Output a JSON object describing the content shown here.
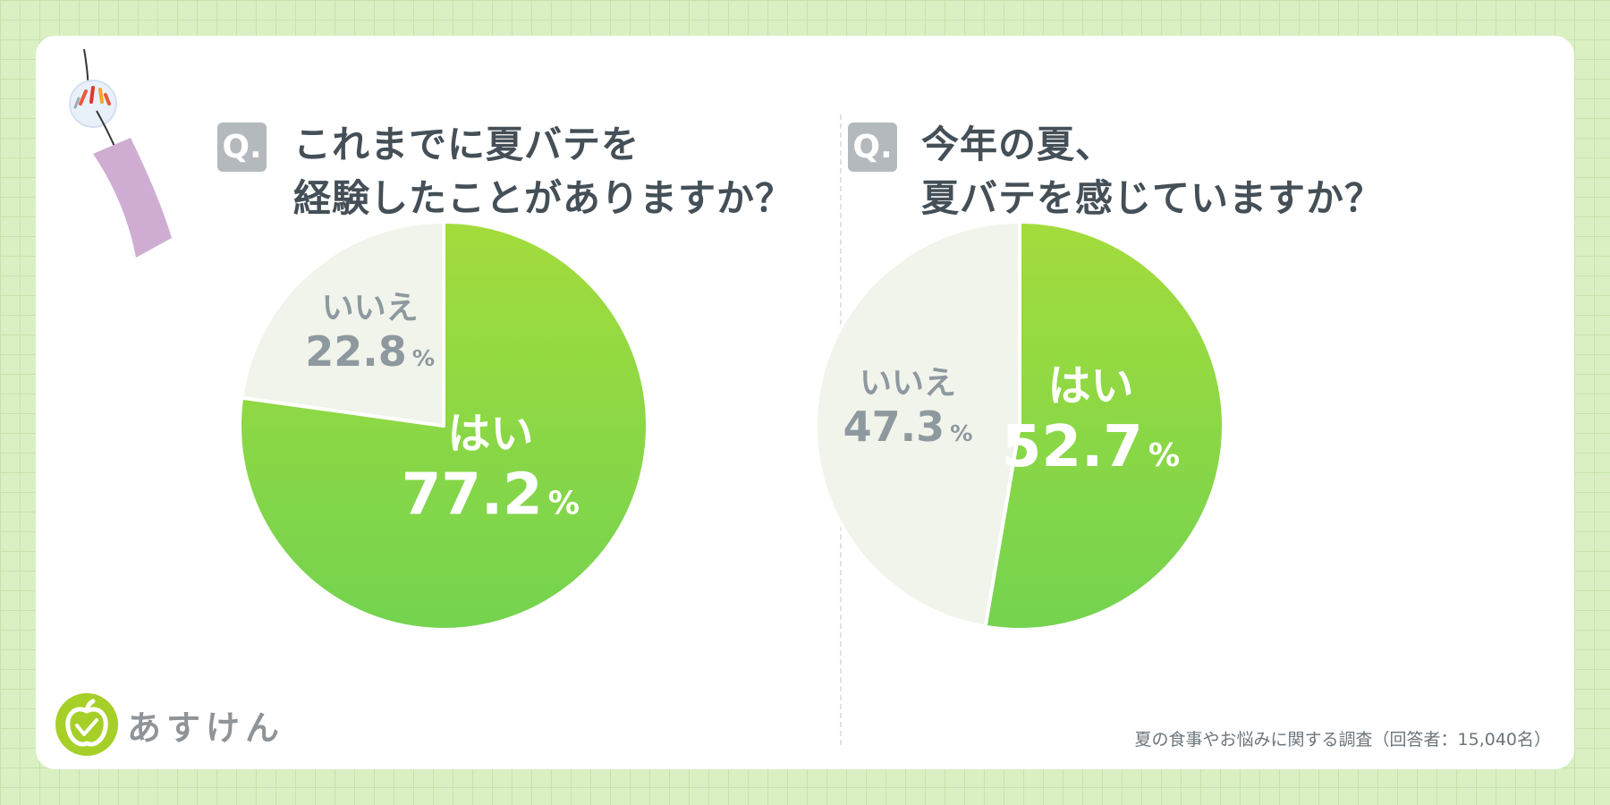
{
  "brand": {
    "name": "あすけん",
    "icon": "apple-logo-icon"
  },
  "footnote": "夏の食事やお悩みに関する調査（回答者：15,040名）",
  "decoration": {
    "icon": "wind-chime-icon"
  },
  "colors": {
    "yes_top": "#a3dc3c",
    "yes_bottom": "#74d34f",
    "no_fill": "#f1f4eb",
    "no_text": "#8e999f",
    "title_text": "#444f57",
    "badge": "#b3b9bd"
  },
  "chart_data": [
    {
      "type": "pie",
      "question_badge": "Q.",
      "title_lines": [
        "これまでに夏バテを",
        "経験したことがありますか？"
      ],
      "slices": [
        {
          "label": "はい",
          "value": 77.2,
          "unit": "%"
        },
        {
          "label": "いいえ",
          "value": 22.8,
          "unit": "%"
        }
      ],
      "start_angle": 0,
      "direction": "clockwise"
    },
    {
      "type": "pie",
      "question_badge": "Q.",
      "title_lines": [
        "今年の夏、",
        "夏バテを感じていますか？"
      ],
      "slices": [
        {
          "label": "はい",
          "value": 52.7,
          "unit": "%"
        },
        {
          "label": "いいえ",
          "value": 47.3,
          "unit": "%"
        }
      ],
      "start_angle": 0,
      "direction": "clockwise"
    }
  ]
}
